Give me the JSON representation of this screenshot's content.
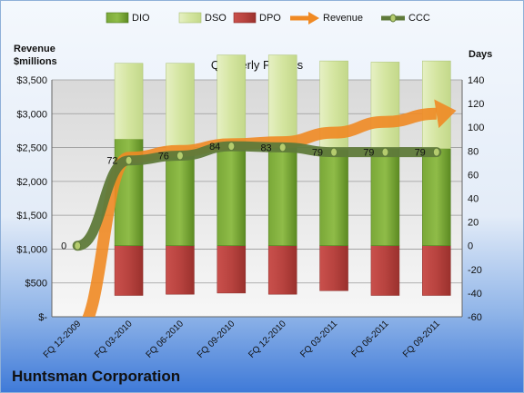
{
  "chart_data": {
    "type": "bar",
    "title": "Quarterly Periods",
    "company": "Huntsman Corporation",
    "left_axis_label": "Revenue\n$millions",
    "right_axis_label": "Days",
    "categories": [
      "FQ 12-2009",
      "FQ 03-2010",
      "FQ 06-2010",
      "FQ 09-2010",
      "FQ 12-2010",
      "FQ 03-2011",
      "FQ 06-2011",
      "FQ 09-2011"
    ],
    "left_ticks": [
      "$-",
      "$500",
      "$1,000",
      "$1,500",
      "$2,000",
      "$2,500",
      "$3,000",
      "$3,500"
    ],
    "right_ticks": [
      "-60",
      "-40",
      "-20",
      "0",
      "20",
      "40",
      "60",
      "80",
      "100",
      "120",
      "140"
    ],
    "left_ylim": [
      0,
      3500
    ],
    "right_ylim": [
      -60,
      140
    ],
    "legend_position": "top",
    "series": [
      {
        "name": "DIO",
        "kind": "stacked-bar",
        "color": "#6a9a2a",
        "values": [
          null,
          90,
          79,
          82,
          83,
          81,
          82,
          82
        ]
      },
      {
        "name": "DSO",
        "kind": "stacked-bar",
        "color": "#d7e6a8",
        "values": [
          null,
          64,
          75,
          79,
          78,
          75,
          73,
          74
        ]
      },
      {
        "name": "DPO",
        "kind": "stacked-bar",
        "color": "#c0504d",
        "values": [
          null,
          -42,
          -41,
          -40,
          -41,
          -38,
          -42,
          -42
        ]
      },
      {
        "name": "Revenue",
        "kind": "arrow-line",
        "color": "#f08a24",
        "values": [
          -200,
          2350,
          2450,
          2550,
          2580,
          2720,
          2880,
          3000
        ]
      },
      {
        "name": "CCC",
        "kind": "line",
        "color": "#5f7a3a",
        "values": [
          0,
          72,
          76,
          84,
          83,
          79,
          79,
          79
        ],
        "labels": [
          "0",
          "72",
          "76",
          "84",
          "83",
          "79",
          "79",
          "79"
        ]
      }
    ]
  }
}
